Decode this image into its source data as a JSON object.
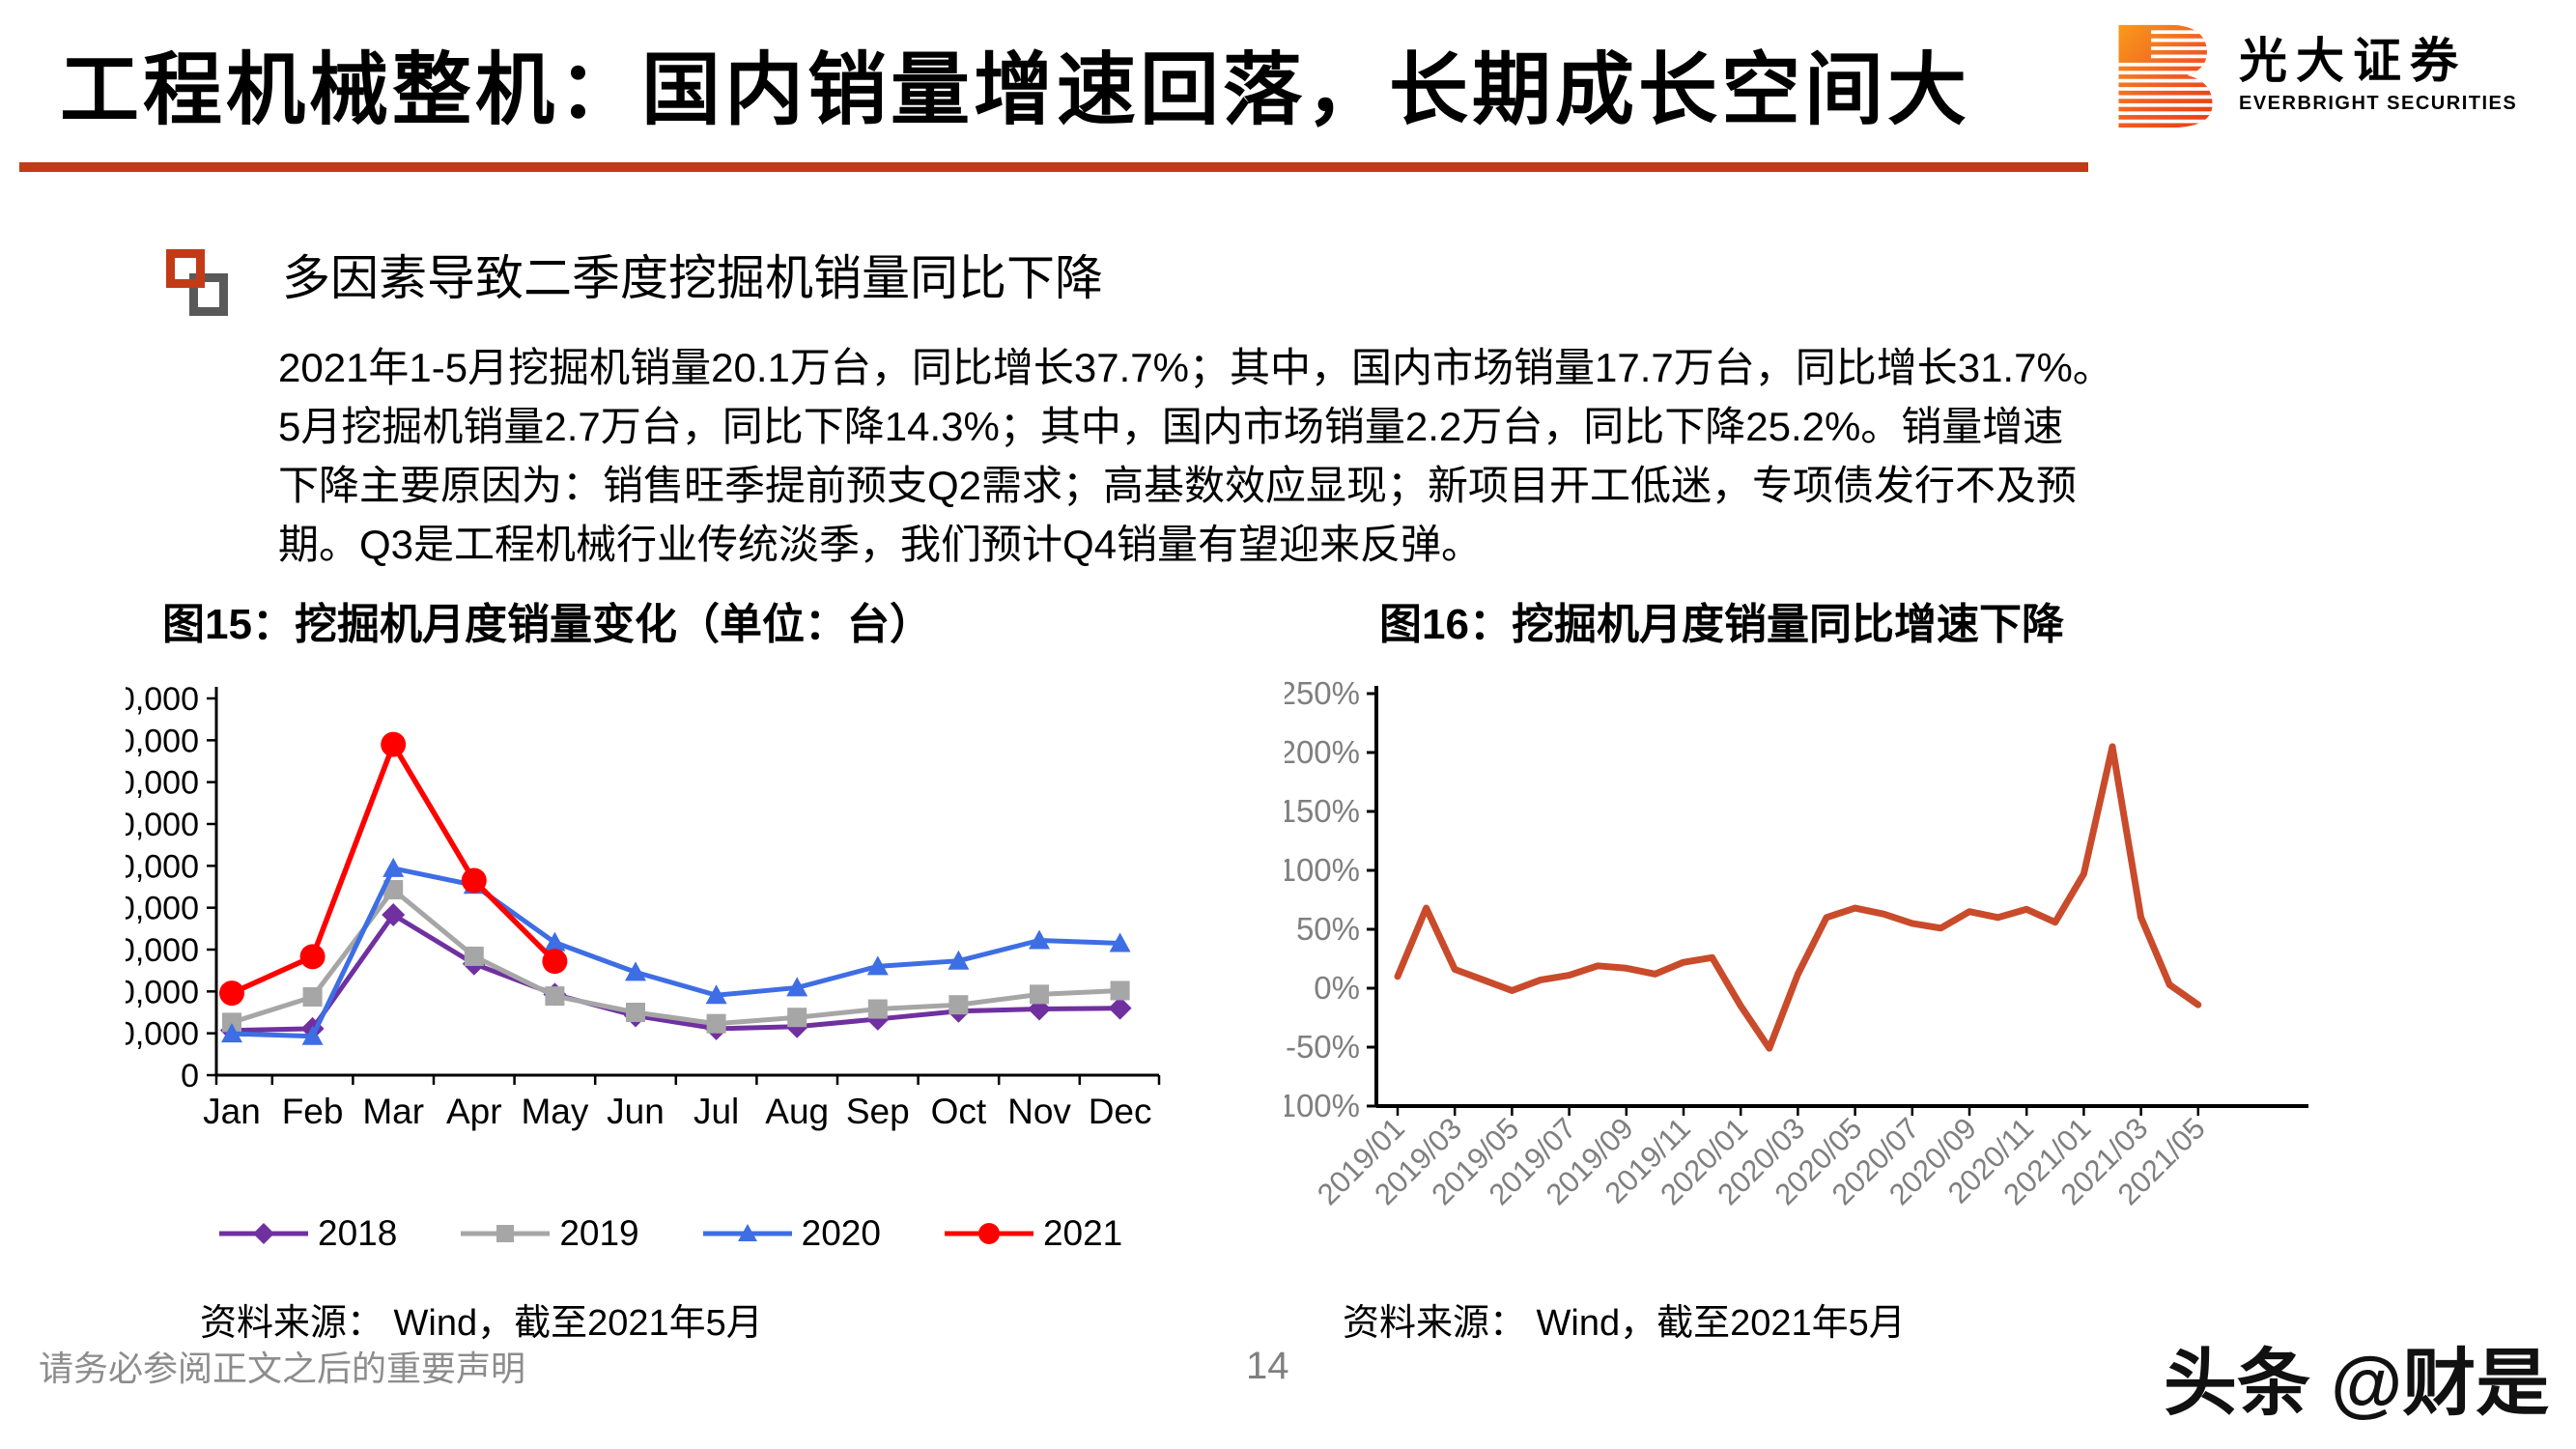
{
  "header": {
    "title": "工程机械整机：国内销量增速回落，长期成长空间大",
    "logo": {
      "cn": "光大证券",
      "en": "EVERBRIGHT SECURITIES"
    },
    "accent_color": "#C23B16"
  },
  "bullet": {
    "heading": "多因素导致二季度挖掘机销量同比下降",
    "body": "2021年1-5月挖掘机销量20.1万台，同比增长37.7%；其中，国内市场销量17.7万台，同比增长31.7%。\n5月挖掘机销量2.7万台，同比下降14.3%；其中，国内市场销量2.2万台，同比下降25.2%。销量增速\n下降主要原因为：销售旺季提前预支Q2需求；高基数效应显现；新项目开工低迷，专项债发行不及预\n期。Q3是工程机械行业传统淡季，我们预计Q4销量有望迎来反弹。"
  },
  "figures": {
    "left": {
      "title": "图15：挖掘机月度销量变化（单位：台）",
      "source": "资料来源： Wind，截至2021年5月"
    },
    "right": {
      "title": "图16：挖掘机月度销量同比增速下降",
      "source": "资料来源： Wind，截至2021年5月"
    }
  },
  "footer": {
    "disclaimer": "请务必参阅正文之后的重要声明",
    "page": "14",
    "watermark": "头条 @财是"
  },
  "chart_data": [
    {
      "type": "line",
      "title": "图15：挖掘机月度销量变化（单位：台）",
      "categories": [
        "Jan",
        "Feb",
        "Mar",
        "Apr",
        "May",
        "Jun",
        "Jul",
        "Aug",
        "Sep",
        "Oct",
        "Nov",
        "Dec"
      ],
      "series": [
        {
          "name": "2018",
          "color": "#7030A0",
          "marker": "diamond",
          "values": [
            10700,
            11100,
            38300,
            26600,
            19300,
            14200,
            11100,
            11600,
            13400,
            15300,
            15800,
            16000
          ]
        },
        {
          "name": "2019",
          "color": "#A6A6A6",
          "marker": "square",
          "values": [
            12600,
            18700,
            44300,
            28400,
            18900,
            15000,
            12300,
            13800,
            15800,
            16800,
            19300,
            20200
          ]
        },
        {
          "name": "2020",
          "color": "#3E6EE4",
          "marker": "triangle",
          "values": [
            9900,
            9300,
            49400,
            45400,
            31700,
            24600,
            19100,
            20900,
            26000,
            27300,
            32200,
            31500
          ]
        },
        {
          "name": "2021",
          "color": "#FF0000",
          "marker": "circle",
          "values": [
            19600,
            28300,
            79000,
            46500,
            27200
          ]
        }
      ],
      "xlabel": "",
      "ylabel": "",
      "ylim": [
        0,
        90000
      ],
      "ytick_step": 10000,
      "grid": false,
      "legend_position": "bottom"
    },
    {
      "type": "line",
      "title": "图16：挖掘机月度销量同比增速下降",
      "x": [
        "2019/01",
        "2019/02",
        "2019/03",
        "2019/04",
        "2019/05",
        "2019/06",
        "2019/07",
        "2019/08",
        "2019/09",
        "2019/10",
        "2019/11",
        "2019/12",
        "2020/01",
        "2020/02",
        "2020/03",
        "2020/04",
        "2020/05",
        "2020/06",
        "2020/07",
        "2020/08",
        "2020/09",
        "2020/10",
        "2020/11",
        "2020/12",
        "2021/01",
        "2021/02",
        "2021/03",
        "2021/04",
        "2021/05"
      ],
      "series": [
        {
          "name": "挖掘机月度销量同比增速",
          "color": "#C94B2B",
          "values": [
            10,
            68,
            16,
            7,
            -2,
            7,
            11,
            19,
            17,
            12,
            22,
            26,
            -15,
            -51,
            12,
            60,
            68,
            63,
            55,
            51,
            65,
            60,
            67,
            56,
            97,
            205,
            60,
            3,
            -14
          ]
        }
      ],
      "xlabel": "",
      "ylabel": "",
      "ylim": [
        -100,
        250
      ],
      "ytick_step": 50,
      "yformat": "percent",
      "xtick_every": 2,
      "xtick_rotation": -45,
      "grid": false,
      "legend_position": "none"
    }
  ]
}
